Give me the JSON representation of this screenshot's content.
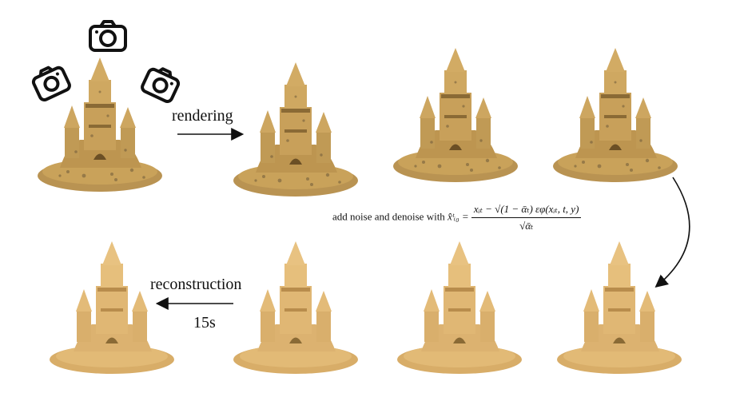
{
  "labels": {
    "rendering": "rendering",
    "reconstruction": "reconstruction",
    "time": "15s",
    "formula_prefix": "add  noise and denoise with ",
    "formula_lhs": "x̂ᵗᵢ₀ =",
    "formula_numerator": "xᵢₜ − √(1 − ᾱₜ) εφ(xᵢₜ, t, y)",
    "formula_denominator": "√ᾱₜ"
  },
  "icons": [
    "camera-icon",
    "camera-icon",
    "camera-icon"
  ],
  "colors": {
    "noisy_sand": "#c9a25a",
    "clean_sand": "#ddb46f",
    "shadow": "#8a6a35",
    "arrow": "#111111"
  }
}
